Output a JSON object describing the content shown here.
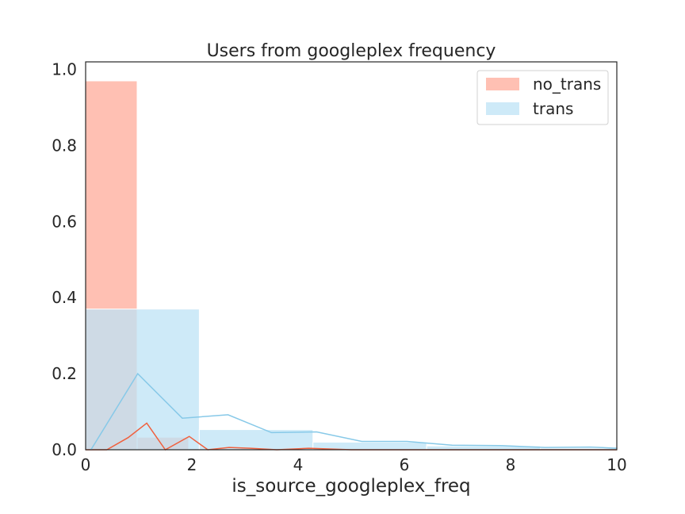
{
  "chart_data": {
    "type": "bar",
    "title": "Users from googleplex frequency",
    "xlabel": "is_source_googleplex_freq",
    "ylabel": "",
    "xlim": [
      0,
      10
    ],
    "ylim": [
      0,
      1.02
    ],
    "xticks": [
      "0",
      "2",
      "4",
      "6",
      "8",
      "10"
    ],
    "yticks": [
      "0.0",
      "0.2",
      "0.4",
      "0.6",
      "0.8",
      "1.0"
    ],
    "grid": false,
    "legend_position": "top-right",
    "series": [
      {
        "name": "no_trans",
        "color": "#ffab99",
        "line_color": "#f0603e",
        "bins": [
          {
            "x0": 0.0,
            "x1": 0.97,
            "value": 0.97
          },
          {
            "x0": 0.97,
            "x1": 1.94,
            "value": 0.033
          },
          {
            "x0": 1.94,
            "x1": 2.91,
            "value": 0.003
          },
          {
            "x0": 2.91,
            "x1": 3.88,
            "value": 0.003
          },
          {
            "x0": 3.88,
            "x1": 4.85,
            "value": 0.001
          },
          {
            "x0": 4.85,
            "x1": 10.0,
            "value": 0.0
          }
        ],
        "kde": {
          "x": [
            0.0,
            0.4,
            0.8,
            1.15,
            1.5,
            1.95,
            2.3,
            2.7,
            3.1,
            3.6,
            4.2,
            5.0,
            6.0,
            7.0,
            8.0,
            9.0,
            10.0
          ],
          "y": [
            0.0,
            0.0,
            0.032,
            0.07,
            0.0,
            0.035,
            0.0,
            0.006,
            0.004,
            0.0,
            0.004,
            0.0,
            0.0,
            0.0,
            0.0,
            0.0,
            0.0
          ]
        }
      },
      {
        "name": "trans",
        "color": "#bde3f5",
        "line_color": "#87c9e8",
        "bins": [
          {
            "x0": 0.0,
            "x1": 2.14,
            "value": 0.37
          },
          {
            "x0": 2.14,
            "x1": 4.28,
            "value": 0.053
          },
          {
            "x0": 4.28,
            "x1": 6.42,
            "value": 0.02
          },
          {
            "x0": 6.42,
            "x1": 8.56,
            "value": 0.01
          },
          {
            "x0": 8.56,
            "x1": 10.0,
            "value": 0.004
          }
        ],
        "kde": {
          "x": [
            0.1,
            0.98,
            1.82,
            2.68,
            3.5,
            4.35,
            5.2,
            6.05,
            6.9,
            7.8,
            8.65,
            9.5,
            10.0
          ],
          "y": [
            0.0,
            0.2,
            0.083,
            0.092,
            0.045,
            0.047,
            0.022,
            0.022,
            0.012,
            0.011,
            0.006,
            0.007,
            0.004
          ]
        }
      }
    ]
  }
}
